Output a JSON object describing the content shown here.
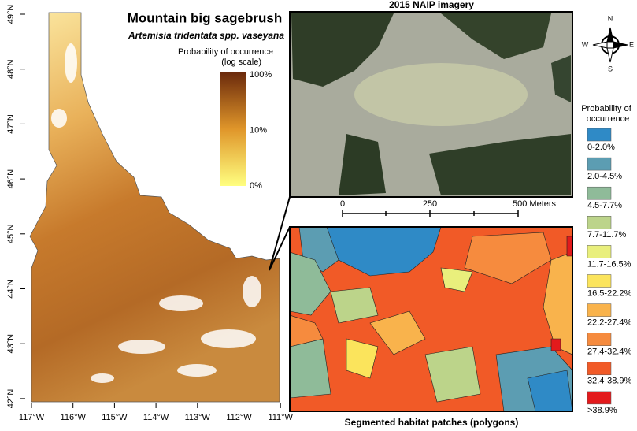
{
  "map": {
    "title": "Mountain big sagebrush",
    "subtitle": "Artemisia tridentata spp. vaseyana",
    "colorbar": {
      "title": [
        "Probability of occurrence",
        "(log scale)"
      ],
      "labels": [
        "100%",
        "10%",
        "0%"
      ]
    },
    "lat_labels": [
      "49°N",
      "48°N",
      "47°N",
      "46°N",
      "45°N",
      "44°N",
      "43°N",
      "42°N"
    ],
    "lon_labels": [
      "117°W",
      "116°W",
      "115°W",
      "114°W",
      "113°W",
      "112°W",
      "111°W"
    ]
  },
  "imagery": {
    "title": "2015 NAIP imagery",
    "scale_labels": [
      "0",
      "250",
      "500 Meters"
    ]
  },
  "compass": {
    "n": "N",
    "e": "E",
    "s": "S",
    "w": "W"
  },
  "legend": {
    "title": [
      "Probability of",
      "occurrence"
    ],
    "classes": [
      {
        "label": "0-2.0%",
        "color": "#2f8ac6"
      },
      {
        "label": "2.0-4.5%",
        "color": "#5c9db2"
      },
      {
        "label": "4.5-7.7%",
        "color": "#8fbb99"
      },
      {
        "label": "7.7-11.7%",
        "color": "#bcd48a"
      },
      {
        "label": "11.7-16.5%",
        "color": "#e9ef7c"
      },
      {
        "label": "16.5-22.2%",
        "color": "#fbe45c"
      },
      {
        "label": "22.2-27.4%",
        "color": "#f9b34c"
      },
      {
        "label": "27.4-32.4%",
        "color": "#f68b3e"
      },
      {
        "label": "32.4-38.9%",
        "color": "#f15a27"
      },
      {
        "label": ">38.9%",
        "color": "#e31a1c"
      }
    ]
  },
  "segments": {
    "caption": "Segmented habitat patches (polygons)"
  }
}
